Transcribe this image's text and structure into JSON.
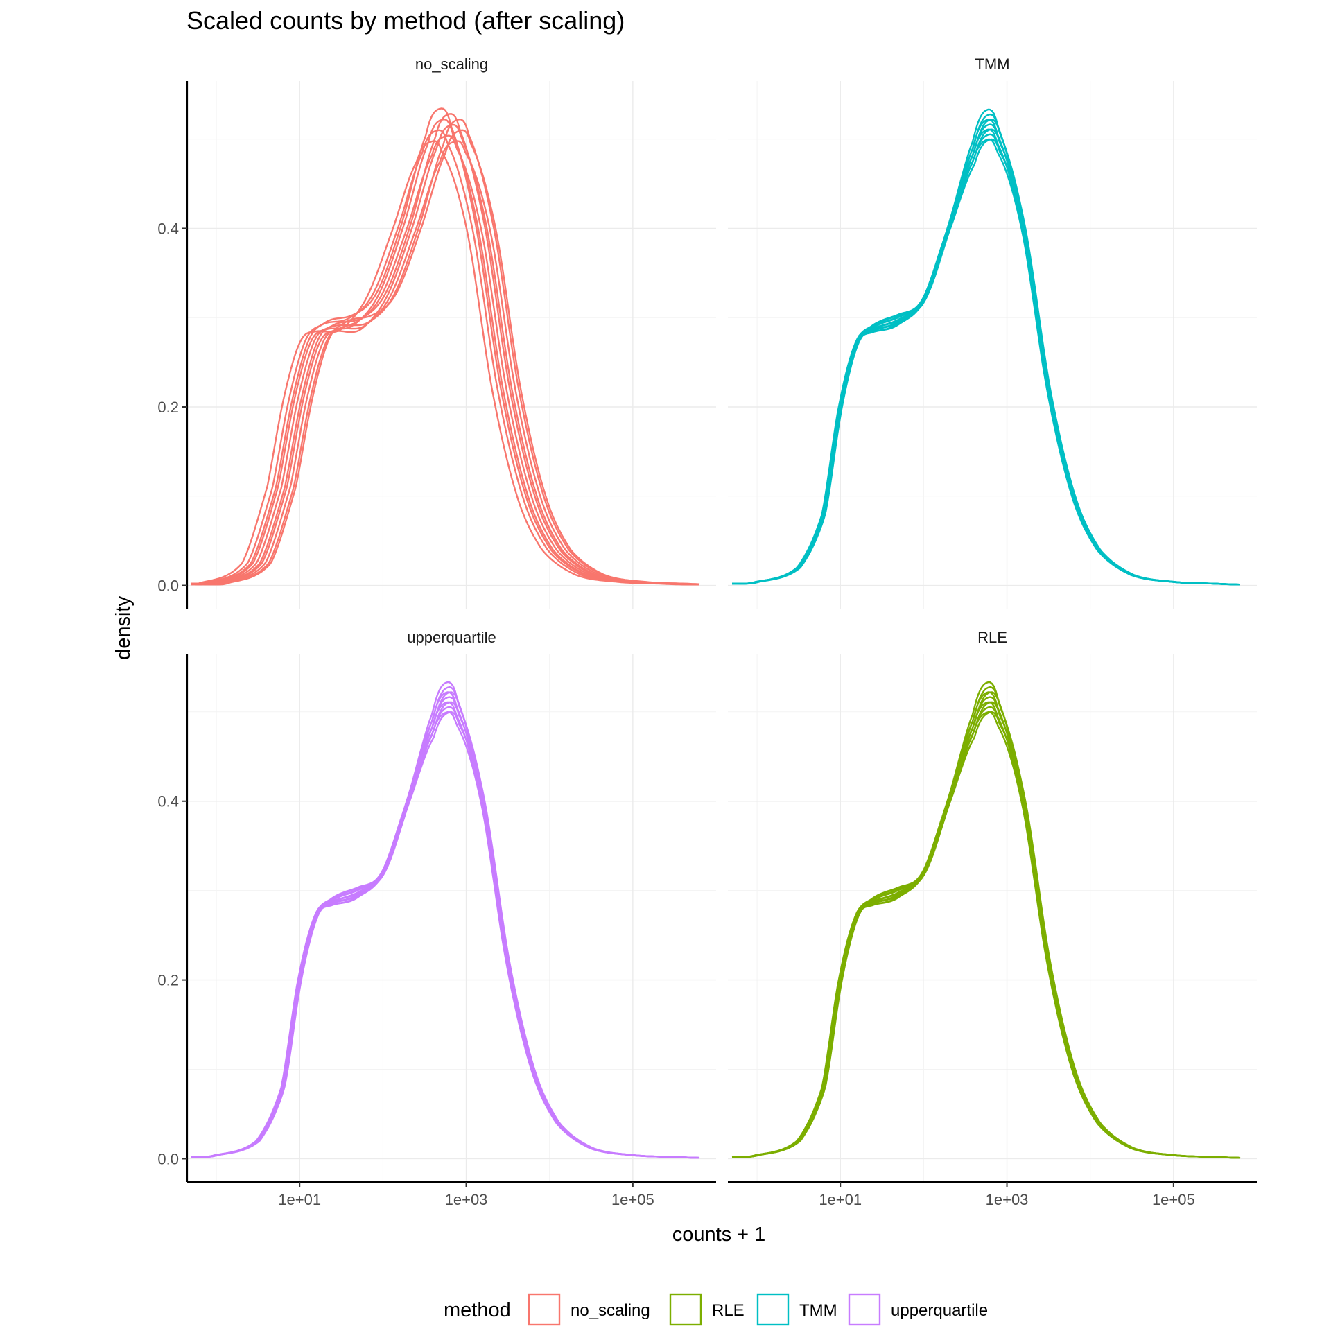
{
  "chart_data": {
    "type": "density",
    "title": "Scaled counts by method (after scaling)",
    "xlabel": "counts + 1",
    "ylabel": "density",
    "x_scale": "log10",
    "x_ticks": [
      {
        "value": 10,
        "label": "1e+01"
      },
      {
        "value": 1000,
        "label": "1e+03"
      },
      {
        "value": 100000,
        "label": "1e+05"
      }
    ],
    "y_ticks": [
      {
        "value": 0.0,
        "label": "0.0"
      },
      {
        "value": 0.2,
        "label": "0.2"
      },
      {
        "value": 0.4,
        "label": "0.4"
      }
    ],
    "xlim_log10": [
      -0.35,
      6.0
    ],
    "ylim": [
      -0.026,
      0.565
    ],
    "legend": {
      "title": "method",
      "position": "bottom",
      "entries": [
        {
          "label": "no_scaling",
          "color": "#F8766D"
        },
        {
          "label": "RLE",
          "color": "#7CAE00"
        },
        {
          "label": "TMM",
          "color": "#00BFC4"
        },
        {
          "label": "upperquartile",
          "color": "#C77CFF"
        }
      ]
    },
    "panels": [
      {
        "strip": "no_scaling",
        "color": "#F8766D",
        "series_count": 10,
        "spread": "wide",
        "x_log10": [
          -0.3,
          0.0,
          0.5,
          0.8,
          1.0,
          1.2,
          1.4,
          1.7,
          2.0,
          2.3,
          2.6,
          2.75,
          2.9,
          3.2,
          3.5,
          3.8,
          4.1,
          4.5,
          5.0,
          5.5,
          5.8
        ],
        "density": [
          0.002,
          0.003,
          0.025,
          0.11,
          0.21,
          0.275,
          0.29,
          0.295,
          0.325,
          0.4,
          0.49,
          0.515,
          0.5,
          0.4,
          0.22,
          0.1,
          0.04,
          0.012,
          0.004,
          0.002,
          0.001
        ]
      },
      {
        "strip": "TMM",
        "color": "#00BFC4",
        "series_count": 10,
        "spread": "narrow",
        "x_log10": [
          -0.3,
          0.0,
          0.5,
          0.8,
          1.0,
          1.2,
          1.4,
          1.7,
          2.0,
          2.3,
          2.6,
          2.75,
          2.9,
          3.2,
          3.5,
          3.8,
          4.1,
          4.5,
          5.0,
          5.5,
          5.8
        ],
        "density": [
          0.002,
          0.004,
          0.02,
          0.08,
          0.2,
          0.272,
          0.288,
          0.298,
          0.32,
          0.4,
          0.485,
          0.515,
          0.5,
          0.4,
          0.22,
          0.1,
          0.04,
          0.012,
          0.004,
          0.002,
          0.001
        ]
      },
      {
        "strip": "upperquartile",
        "color": "#C77CFF",
        "series_count": 10,
        "spread": "narrow",
        "x_log10": [
          -0.3,
          0.0,
          0.5,
          0.8,
          1.0,
          1.2,
          1.4,
          1.7,
          2.0,
          2.3,
          2.6,
          2.75,
          2.9,
          3.2,
          3.5,
          3.8,
          4.1,
          4.5,
          5.0,
          5.5,
          5.8
        ],
        "density": [
          0.002,
          0.004,
          0.02,
          0.08,
          0.2,
          0.272,
          0.288,
          0.298,
          0.32,
          0.4,
          0.485,
          0.515,
          0.5,
          0.4,
          0.22,
          0.1,
          0.04,
          0.012,
          0.004,
          0.002,
          0.001
        ]
      },
      {
        "strip": "RLE",
        "color": "#7CAE00",
        "series_count": 10,
        "spread": "narrow",
        "x_log10": [
          -0.3,
          0.0,
          0.5,
          0.8,
          1.0,
          1.2,
          1.4,
          1.7,
          2.0,
          2.3,
          2.6,
          2.75,
          2.9,
          3.2,
          3.5,
          3.8,
          4.1,
          4.5,
          5.0,
          5.5,
          5.8
        ],
        "density": [
          0.002,
          0.004,
          0.02,
          0.08,
          0.2,
          0.272,
          0.288,
          0.298,
          0.32,
          0.4,
          0.485,
          0.515,
          0.5,
          0.4,
          0.22,
          0.1,
          0.04,
          0.012,
          0.004,
          0.002,
          0.001
        ]
      }
    ]
  }
}
